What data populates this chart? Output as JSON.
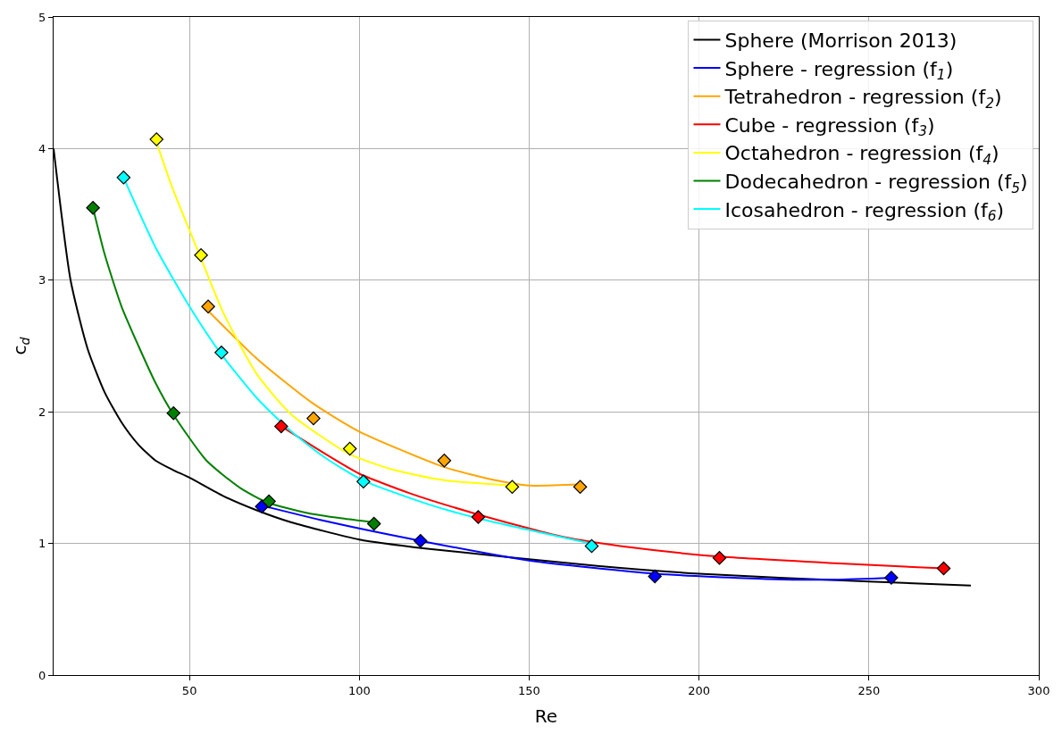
{
  "chart_data": {
    "type": "line",
    "xlabel": "Re",
    "ylabel": "c$_{d}$",
    "xlim": [
      10,
      300
    ],
    "xticks": [
      50,
      100,
      150,
      200,
      250,
      300
    ],
    "ylim": [
      0,
      5
    ],
    "yticks": [
      0,
      1,
      2,
      3,
      4,
      5
    ],
    "grid": true,
    "legend": "top right",
    "series": [
      {
        "name": "Sphere (Morrison 2013)",
        "color": "#000000",
        "x": [
          10,
          15,
          20,
          25,
          30,
          35,
          40,
          45,
          50,
          60,
          70,
          80,
          100,
          120,
          170,
          200,
          250,
          280
        ],
        "values": [
          4.0,
          3.0,
          2.48,
          2.15,
          1.92,
          1.75,
          1.63,
          1.56,
          1.5,
          1.36,
          1.25,
          1.16,
          1.03,
          0.96,
          0.83,
          0.77,
          0.71,
          0.68
        ]
      },
      {
        "name": "Sphere - regression (f$_{1}$)",
        "color": "#0000ff",
        "x": [
          71,
          90,
          118,
          150,
          187,
          220,
          240,
          257
        ],
        "values": [
          1.29,
          1.17,
          1.02,
          0.87,
          0.77,
          0.73,
          0.725,
          0.74
        ]
      },
      {
        "name": "Tetrahedron - regression (f$_{2}$)",
        "color": "#ffa500",
        "x": [
          55,
          70,
          86,
          100,
          125,
          140,
          150,
          165
        ],
        "values": [
          2.78,
          2.4,
          2.07,
          1.85,
          1.58,
          1.48,
          1.44,
          1.45
        ]
      },
      {
        "name": "Cube - regression (f$_{3}$)",
        "color": "#ff0000",
        "x": [
          77,
          90,
          100,
          115,
          135,
          160,
          180,
          206,
          240,
          272
        ],
        "values": [
          1.89,
          1.68,
          1.53,
          1.38,
          1.22,
          1.05,
          0.97,
          0.9,
          0.85,
          0.81
        ]
      },
      {
        "name": "Octahedron - regression (f$_{4}$)",
        "color": "#ffff00",
        "x": [
          40,
          45,
          53,
          60,
          70,
          80,
          97,
          110,
          125,
          145
        ],
        "values": [
          4.07,
          3.7,
          3.19,
          2.75,
          2.28,
          1.98,
          1.68,
          1.56,
          1.48,
          1.44
        ]
      },
      {
        "name": "Dodecahedron - regression (f$_{5}$)",
        "color": "#008000",
        "x": [
          21.6,
          25,
          30,
          35,
          40,
          45,
          55,
          65,
          73,
          85,
          95,
          104
        ],
        "values": [
          3.55,
          3.2,
          2.8,
          2.5,
          2.22,
          1.99,
          1.63,
          1.42,
          1.31,
          1.23,
          1.19,
          1.16
        ]
      },
      {
        "name": "Icosahedron - regression (f$_{6}$)",
        "color": "#00ffff",
        "x": [
          30.6,
          40,
          50,
          59,
          70,
          80,
          90,
          101,
          120,
          135,
          168
        ],
        "values": [
          3.78,
          3.25,
          2.8,
          2.45,
          2.1,
          1.85,
          1.65,
          1.48,
          1.3,
          1.19,
          1.0
        ]
      },
      {
        "type": "scatter",
        "marker": "diamond",
        "color": "#0000ff",
        "x": [
          71.3,
          118,
          187,
          256.6
        ],
        "values": [
          1.28,
          1.02,
          0.75,
          0.74
        ]
      },
      {
        "type": "scatter",
        "marker": "diamond",
        "color": "#ffa500",
        "x": [
          55.5,
          86.5,
          125,
          165
        ],
        "values": [
          2.8,
          1.95,
          1.63,
          1.43
        ]
      },
      {
        "type": "scatter",
        "marker": "diamond",
        "color": "#ff0000",
        "x": [
          77,
          135,
          206,
          272
        ],
        "values": [
          1.89,
          1.2,
          0.89,
          0.81
        ]
      },
      {
        "type": "scatter",
        "marker": "diamond",
        "color": "#ffff00",
        "x": [
          40.3,
          53.4,
          97.2,
          145
        ],
        "values": [
          4.07,
          3.19,
          1.72,
          1.43
        ]
      },
      {
        "type": "scatter",
        "marker": "diamond",
        "color": "#008000",
        "x": [
          21.6,
          45.3,
          73.4,
          104.3
        ],
        "values": [
          3.55,
          1.99,
          1.32,
          1.15
        ]
      },
      {
        "type": "scatter",
        "marker": "diamond",
        "color": "#00ffff",
        "x": [
          30.6,
          59.4,
          101.2,
          168.4
        ],
        "values": [
          3.78,
          2.45,
          1.47,
          0.98
        ]
      }
    ]
  }
}
